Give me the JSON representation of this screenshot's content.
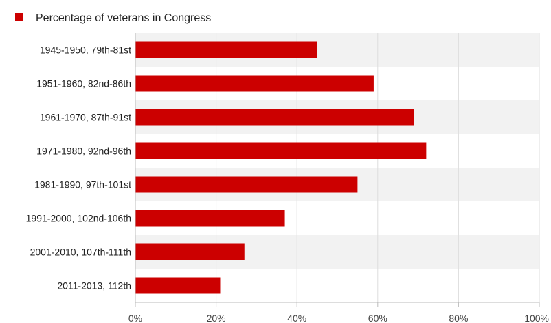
{
  "chart_data": {
    "type": "bar",
    "orientation": "horizontal",
    "categories": [
      "1945-1950, 79th-81st",
      "1951-1960, 82nd-86th",
      "1961-1970, 87th-91st",
      "1971-1980, 92nd-96th",
      "1981-1990, 97th-101st",
      "1991-2000, 102nd-106th",
      "2001-2010, 107th-111th",
      "2011-2013, 112th"
    ],
    "series": [
      {
        "name": "Percentage of veterans in Congress",
        "values": [
          45,
          59,
          69,
          72,
          55,
          37,
          27,
          21
        ],
        "color": "#cc0000"
      }
    ],
    "x_ticks": [
      0,
      20,
      40,
      60,
      80,
      100
    ],
    "x_tick_labels": [
      "0%",
      "20%",
      "40%",
      "60%",
      "80%",
      "100%"
    ],
    "xlim": [
      0,
      100
    ],
    "legend_position": "top-left",
    "band_color": "#f2f2f2",
    "axis_color": "#bbbbbb"
  }
}
